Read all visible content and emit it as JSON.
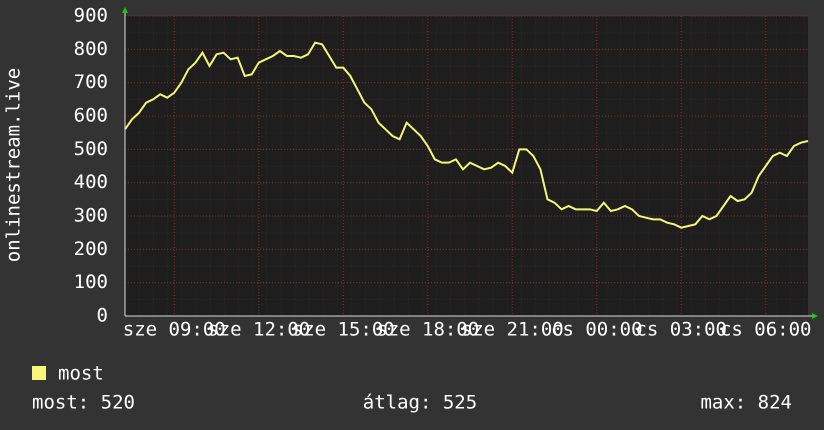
{
  "chart_data": {
    "type": "line",
    "ylabel": "onlinestream.live",
    "series": [
      {
        "name": "most",
        "color": "#f5f57a",
        "values": [
          560,
          590,
          610,
          640,
          650,
          665,
          655,
          670,
          700,
          740,
          760,
          790,
          750,
          785,
          790,
          770,
          775,
          720,
          725,
          760,
          770,
          780,
          795,
          780,
          780,
          775,
          785,
          820,
          815,
          780,
          745,
          745,
          720,
          680,
          640,
          620,
          580,
          560,
          540,
          530,
          580,
          560,
          540,
          510,
          470,
          460,
          460,
          470,
          440,
          460,
          450,
          440,
          445,
          460,
          450,
          430,
          500,
          500,
          480,
          440,
          350,
          340,
          320,
          330,
          320,
          320,
          320,
          315,
          340,
          315,
          320,
          330,
          320,
          300,
          295,
          290,
          290,
          280,
          275,
          265,
          270,
          275,
          300,
          290,
          300,
          330,
          360,
          345,
          350,
          370,
          420,
          450,
          480,
          490,
          480,
          510,
          520,
          525
        ]
      }
    ],
    "x": [
      7.25,
      7.5,
      7.75,
      8,
      8.25,
      8.5,
      8.75,
      9,
      9.25,
      9.5,
      9.75,
      10,
      10.25,
      10.5,
      10.75,
      11,
      11.25,
      11.5,
      11.75,
      12,
      12.25,
      12.5,
      12.75,
      13,
      13.25,
      13.5,
      13.75,
      14,
      14.25,
      14.5,
      14.75,
      15,
      15.25,
      15.5,
      15.75,
      16,
      16.25,
      16.5,
      16.75,
      17,
      17.25,
      17.5,
      17.75,
      18,
      18.25,
      18.5,
      18.75,
      19,
      19.25,
      19.5,
      19.75,
      20,
      20.25,
      20.5,
      20.75,
      21,
      21.25,
      21.5,
      21.75,
      22,
      22.25,
      22.5,
      22.75,
      23,
      23.25,
      23.5,
      23.75,
      24,
      24.25,
      24.5,
      24.75,
      25,
      25.25,
      25.5,
      25.75,
      26,
      26.25,
      26.5,
      26.75,
      27,
      27.25,
      27.5,
      27.75,
      28,
      28.25,
      28.5,
      28.75,
      29,
      29.25,
      29.5,
      29.75,
      30,
      30.25,
      30.5,
      30.75,
      31,
      31.25,
      31.5
    ],
    "xlim": [
      7.25,
      31.5
    ],
    "xticks": [
      {
        "value": 9,
        "label": "sze 09:00"
      },
      {
        "value": 12,
        "label": "sze 12:00"
      },
      {
        "value": 15,
        "label": "sze 15:00"
      },
      {
        "value": 18,
        "label": "sze 18:00"
      },
      {
        "value": 21,
        "label": "sze 21:00"
      },
      {
        "value": 24,
        "label": "cs 00:00"
      },
      {
        "value": 27,
        "label": "cs 03:00"
      },
      {
        "value": 30,
        "label": "cs 06:00"
      }
    ],
    "ylim": [
      0,
      900
    ],
    "yticks": [
      0,
      100,
      200,
      300,
      400,
      500,
      600,
      700,
      800,
      900
    ],
    "grid": true,
    "stats": [
      "most: 520",
      "átlag: 525",
      "max: 824"
    ]
  }
}
